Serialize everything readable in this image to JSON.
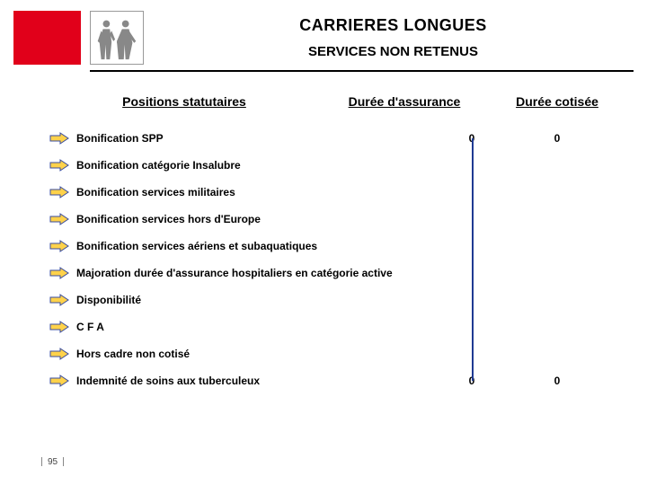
{
  "header": {
    "title1": "CARRIERES LONGUES",
    "title2": "SERVICES NON RETENUS"
  },
  "columns": {
    "positions": "Positions statutaires",
    "assurance": "Durée d'assurance",
    "cotisee": "Durée cotisée"
  },
  "rows": [
    {
      "label": "Bonification SPP",
      "assurance": "0",
      "cotisee": "0"
    },
    {
      "label": "Bonification catégorie Insalubre",
      "assurance": "",
      "cotisee": ""
    },
    {
      "label": "Bonification services militaires",
      "assurance": "",
      "cotisee": ""
    },
    {
      "label": "Bonification services hors d'Europe",
      "assurance": "",
      "cotisee": ""
    },
    {
      "label": "Bonification services aériens et subaquatiques",
      "assurance": "",
      "cotisee": ""
    },
    {
      "label": "Majoration durée d'assurance hospitaliers en catégorie active",
      "assurance": "",
      "cotisee": ""
    },
    {
      "label": "Disponibilité",
      "assurance": "",
      "cotisee": ""
    },
    {
      "label": "C F A",
      "assurance": "",
      "cotisee": ""
    },
    {
      "label": "Hors cadre non cotisé",
      "assurance": "",
      "cotisee": ""
    },
    {
      "label": "Indemnité de soins aux tuberculeux",
      "assurance": "0",
      "cotisee": "0"
    }
  ],
  "arrow": {
    "fill": "#ffd24a",
    "stroke": "#374b9e"
  },
  "connector_color": "#1f3a93",
  "page_number": "95"
}
